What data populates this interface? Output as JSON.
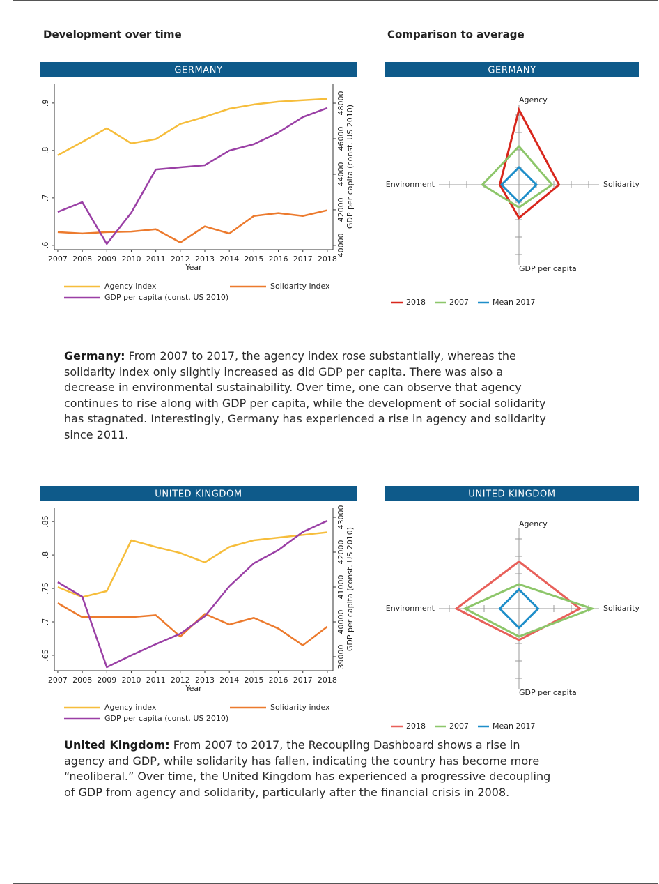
{
  "headings": [
    "Development over time",
    "Comparison to average"
  ],
  "chart_data": [
    {
      "type": "line",
      "title": "GERMANY",
      "xlabel": "Year",
      "y2label": "GDP per capita (const. US 2010)",
      "x": [
        2007,
        2008,
        2009,
        2010,
        2011,
        2012,
        2013,
        2014,
        2015,
        2016,
        2017,
        2018
      ],
      "xlim": [
        2006.86,
        2018.23
      ],
      "xticks": [
        2007,
        2008,
        2009,
        2010,
        2011,
        2012,
        2013,
        2014,
        2015,
        2016,
        2017,
        2018
      ],
      "ylim": [
        0.591,
        0.941
      ],
      "yticks": [
        {
          "value": 0.6,
          "label": ".6"
        },
        {
          "value": 0.7,
          "label": ".7"
        },
        {
          "value": 0.8,
          "label": ".8"
        },
        {
          "value": 0.9,
          "label": ".9"
        }
      ],
      "y2lim": [
        39760,
        49100
      ],
      "y2ticks": [
        40000,
        42000,
        44000,
        46000,
        48000
      ],
      "series": [
        {
          "name": "Agency index",
          "color": "#f6bd3b",
          "values": [
            0.79,
            0.818,
            0.847,
            0.815,
            0.824,
            0.856,
            0.871,
            0.888,
            0.897,
            0.903,
            0.906,
            0.909
          ]
        },
        {
          "name": "Solidarity index",
          "color": "#ec7a2d",
          "values": [
            0.628,
            0.625,
            0.628,
            0.629,
            0.634,
            0.606,
            0.64,
            0.625,
            0.662,
            0.668,
            0.662,
            0.674
          ]
        },
        {
          "name": "GDP per capita (const. US 2010)",
          "color": "#9a3fa5",
          "axis": "y2",
          "values": [
            41880,
            42430,
            40080,
            41840,
            44270,
            44390,
            44510,
            45330,
            45690,
            46350,
            47220,
            47730
          ]
        }
      ]
    },
    {
      "type": "radar",
      "title": "GERMANY",
      "categories": [
        "Agency",
        "Solidarity",
        "GDP per capita",
        "Environment"
      ],
      "rlim": [
        0,
        5
      ],
      "rticks": [
        1,
        2,
        3,
        4
      ],
      "series": [
        {
          "name": "2018",
          "color": "#d8261c",
          "values": [
            4.3,
            2.3,
            1.9,
            1.1
          ]
        },
        {
          "name": "2007",
          "color": "#8dc66a",
          "values": [
            2.2,
            1.9,
            1.3,
            2.1
          ]
        },
        {
          "name": "Mean 2017",
          "color": "#1e8ec9",
          "values": [
            1,
            1,
            1,
            1
          ]
        }
      ]
    },
    {
      "type": "line",
      "title": "UNITED KINGDOM",
      "xlabel": "Year",
      "y2label": "GDP per capita (const. US 2010)",
      "x": [
        2007,
        2008,
        2009,
        2010,
        2011,
        2012,
        2013,
        2014,
        2015,
        2016,
        2017,
        2018
      ],
      "xlim": [
        2006.86,
        2018.23
      ],
      "xticks": [
        2007,
        2008,
        2009,
        2010,
        2011,
        2012,
        2013,
        2014,
        2015,
        2016,
        2017,
        2018
      ],
      "ylim": [
        0.627,
        0.871
      ],
      "yticks": [
        {
          "value": 0.65,
          "label": ".65"
        },
        {
          "value": 0.7,
          "label": ".7"
        },
        {
          "value": 0.75,
          "label": ".75"
        },
        {
          "value": 0.8,
          "label": ".8"
        },
        {
          "value": 0.85,
          "label": ".85"
        }
      ],
      "y2lim": [
        38600,
        43280
      ],
      "y2ticks": [
        39000,
        40000,
        41000,
        42000,
        43000
      ],
      "series": [
        {
          "name": "Agency index",
          "color": "#f6bd3b",
          "values": [
            0.752,
            0.737,
            0.746,
            0.822,
            0.812,
            0.803,
            0.789,
            0.812,
            0.822,
            0.826,
            0.83,
            0.834
          ]
        },
        {
          "name": "Solidarity index",
          "color": "#ec7a2d",
          "values": [
            0.728,
            0.707,
            0.707,
            0.707,
            0.71,
            0.678,
            0.712,
            0.696,
            0.706,
            0.69,
            0.665,
            0.693
          ]
        },
        {
          "name": "GDP per capita (const. US 2010)",
          "color": "#9a3fa5",
          "axis": "y2",
          "values": [
            41140,
            40720,
            38700,
            39040,
            39360,
            39660,
            40160,
            41020,
            41680,
            42060,
            42580,
            42900
          ]
        }
      ]
    },
    {
      "type": "radar",
      "title": "UNITED KINGDOM",
      "categories": [
        "Agency",
        "Solidarity",
        "GDP per capita",
        "Environment"
      ],
      "rlim": [
        0,
        5
      ],
      "rticks": [
        1,
        2,
        3,
        4
      ],
      "series": [
        {
          "name": "2018",
          "color": "#e8605a",
          "values": [
            2.7,
            3.5,
            1.8,
            3.6
          ]
        },
        {
          "name": "2007",
          "color": "#8dc66a",
          "values": [
            1.4,
            4.2,
            1.6,
            3.1
          ]
        },
        {
          "name": "Mean 2017",
          "color": "#1e8ec9",
          "values": [
            1.1,
            1.1,
            1.1,
            1.1
          ]
        }
      ]
    }
  ],
  "paragraphs": [
    {
      "lead": "Germany:",
      "text": "From 2007 to 2017, the agency index rose substantially, whereas the solidarity index only slightly increased as did GDP per capita. There was also a decrease in environmental sustainability. Over time, one can observe that agency continues to rise along with GDP per capita, while the development of social solidarity has stagnated. Interestingly, Germany has experienced a rise in agency and solidarity since 2011."
    },
    {
      "lead": "United Kingdom:",
      "text": "From 2007 to 2017, the Recoupling Dashboard shows a rise in agency and GDP, while solidarity has fallen, indicating the country has become more “neoliberal.” Over time, the United Kingdom has experienced a progressive decoupling of GDP from agency and solidarity, particularly after the financial crisis in 2008."
    }
  ]
}
